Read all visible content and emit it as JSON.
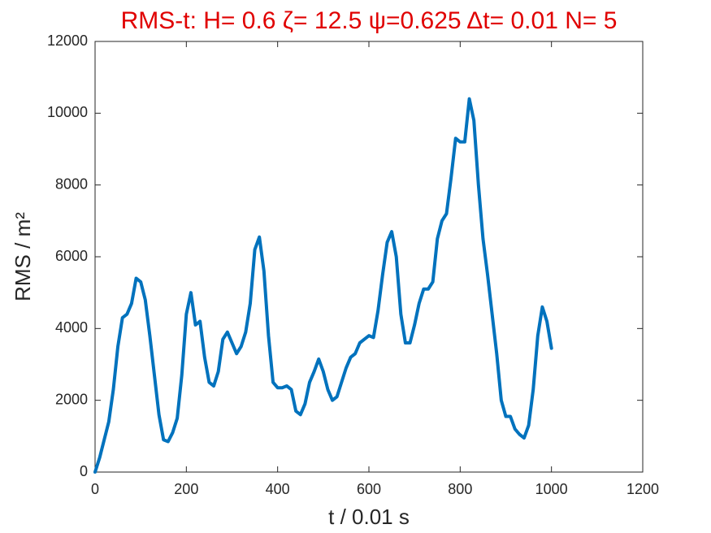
{
  "chart_data": {
    "type": "line",
    "title": "RMS-t:  H= 0.6 ζ= 12.5 ψ=0.625 Δt= 0.01 N= 5",
    "x_label": "t / 0.01 s",
    "y_label": "RMS / m²",
    "x": [
      0,
      10,
      20,
      30,
      40,
      50,
      60,
      70,
      80,
      90,
      100,
      110,
      120,
      130,
      140,
      150,
      160,
      170,
      180,
      190,
      200,
      210,
      220,
      230,
      240,
      250,
      260,
      270,
      280,
      290,
      300,
      310,
      320,
      330,
      340,
      350,
      360,
      370,
      380,
      390,
      400,
      410,
      420,
      430,
      440,
      450,
      460,
      470,
      480,
      490,
      500,
      510,
      520,
      530,
      540,
      550,
      560,
      570,
      580,
      590,
      600,
      610,
      620,
      630,
      640,
      650,
      660,
      670,
      680,
      690,
      700,
      710,
      720,
      730,
      740,
      750,
      760,
      770,
      780,
      790,
      800,
      810,
      820,
      830,
      840,
      850,
      860,
      870,
      880,
      890,
      900,
      910,
      920,
      930,
      940,
      950,
      960,
      970,
      980,
      990,
      1000
    ],
    "values": [
      0,
      400,
      900,
      1400,
      2300,
      3500,
      4300,
      4400,
      4700,
      5400,
      5300,
      4800,
      3800,
      2700,
      1600,
      900,
      850,
      1100,
      1500,
      2700,
      4400,
      5000,
      4100,
      4200,
      3200,
      2500,
      2400,
      2800,
      3700,
      3900,
      3600,
      3300,
      3500,
      3900,
      4700,
      6200,
      6550,
      5600,
      3800,
      2500,
      2350,
      2350,
      2400,
      2300,
      1700,
      1600,
      1900,
      2500,
      2800,
      3150,
      2800,
      2300,
      2000,
      2100,
      2500,
      2900,
      3200,
      3300,
      3600,
      3700,
      3800,
      3750,
      4500,
      5500,
      6400,
      6700,
      6000,
      4400,
      3600,
      3600,
      4100,
      4700,
      5100,
      5100,
      5300,
      6500,
      7000,
      7200,
      8200,
      9300,
      9200,
      9200,
      10400,
      9800,
      8000,
      6500,
      5500,
      4400,
      3300,
      2000,
      1550,
      1550,
      1200,
      1050,
      950,
      1300,
      2300,
      3800,
      4600,
      4200,
      3450
    ],
    "color": "#0072bd",
    "xlim": [
      0,
      1200
    ],
    "xticks": [
      0,
      200,
      400,
      600,
      800,
      1000,
      1200
    ],
    "ylim": [
      0,
      12000
    ],
    "yticks": [
      0,
      2000,
      4000,
      6000,
      8000,
      10000,
      12000
    ]
  }
}
